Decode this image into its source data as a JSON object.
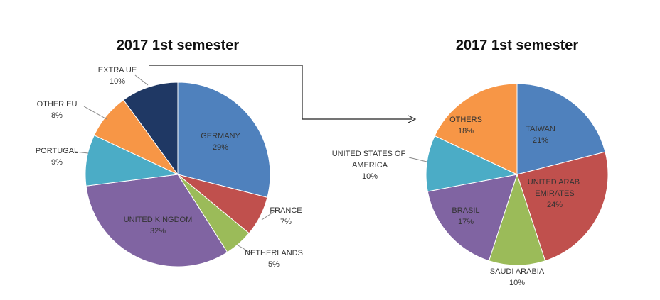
{
  "chart_data": [
    {
      "type": "pie",
      "title": "2017 1st semester",
      "categories": [
        "GERMANY",
        "FRANCE",
        "NETHERLANDS",
        "UNITED KINGDOM",
        "PORTUGAL",
        "OTHER EU",
        "EXTRA UE"
      ],
      "values": [
        29,
        7,
        5,
        32,
        9,
        8,
        10
      ],
      "value_labels": [
        "29%",
        "7%",
        "5%",
        "32%",
        "9%",
        "8%",
        "10%"
      ],
      "colors": [
        "#4f81bd",
        "#c0504d",
        "#9bbb59",
        "#8064a2",
        "#4bacc6",
        "#f79646",
        "#1f3864"
      ]
    },
    {
      "type": "pie",
      "title": "2017 1st semester",
      "categories": [
        "TAIWAN",
        "UNITED ARAB EMIRATES",
        "SAUDI ARABIA",
        "BRASIL",
        "UNITED STATES OF AMERICA",
        "OTHERS"
      ],
      "values": [
        21,
        24,
        10,
        17,
        10,
        18
      ],
      "value_labels": [
        "21%",
        "24%",
        "10%",
        "17%",
        "10%",
        "18%"
      ],
      "colors": [
        "#4f81bd",
        "#c0504d",
        "#9bbb59",
        "#8064a2",
        "#4bacc6",
        "#f79646"
      ]
    }
  ]
}
